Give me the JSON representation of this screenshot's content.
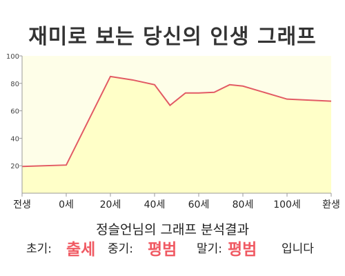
{
  "title": "재미로 보는 당신의 인생 그래프",
  "subtitle": "정슬언님의 그래프 분석결과",
  "summary": {
    "early_label": "초기:",
    "early_value": "출세",
    "mid_label": "중기:",
    "mid_value": "평범",
    "late_label": "말기:",
    "late_value": "평범",
    "ending": "입니다"
  },
  "colors": {
    "line": "#e25a64",
    "fill": "#ffffc8",
    "plot_bg": "#fefee8",
    "highlight": "#f05a63"
  },
  "chart_data": {
    "type": "area",
    "title": "재미로 보는 당신의 인생 그래프",
    "x_tick_labels": [
      "전생",
      "0세",
      "20세",
      "40세",
      "60세",
      "80세",
      "100세",
      "환생"
    ],
    "x": [
      -20,
      0,
      20,
      40,
      60,
      80,
      100,
      120
    ],
    "ylim": [
      0,
      100
    ],
    "y_ticks": [
      20,
      40,
      60,
      80,
      100
    ],
    "grid": false,
    "series": [
      {
        "x": [
          -20,
          0,
          20,
          30,
          40,
          47,
          54,
          60,
          67,
          74,
          80,
          100,
          120
        ],
        "values": [
          19.5,
          20.5,
          85,
          82.5,
          79,
          64,
          73,
          73,
          73.5,
          79,
          78,
          68.5,
          67
        ]
      }
    ]
  }
}
